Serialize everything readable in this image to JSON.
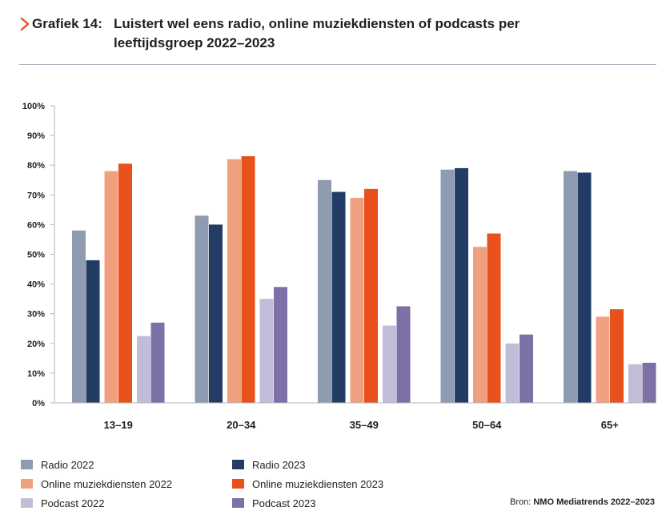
{
  "header": {
    "prefix": "Grafiek 14:",
    "title": "Luistert wel eens radio, online muziekdiensten of podcasts per leeftijdsgroep 2022–2023",
    "accent_color": "#e8501c",
    "icon": "chevron-right-icon"
  },
  "source": {
    "label": "Bron:",
    "name": "NMO Mediatrends 2022–2023"
  },
  "chart_data": {
    "type": "bar",
    "title": "Luistert wel eens radio, online muziekdiensten of podcasts per leeftijdsgroep 2022–2023",
    "xlabel": "",
    "ylabel": "",
    "ylim": [
      0,
      100
    ],
    "yticks": [
      "0%",
      "10%",
      "20%",
      "30%",
      "40%",
      "50%",
      "60%",
      "70%",
      "80%",
      "90%",
      "100%"
    ],
    "grid": false,
    "legend_position": "bottom",
    "categories": [
      "13–19",
      "20–34",
      "35–49",
      "50–64",
      "65+"
    ],
    "series": [
      {
        "name": "Radio 2022",
        "color": "#8e9bb0",
        "values": [
          58,
          63,
          75,
          78.5,
          78
        ]
      },
      {
        "name": "Radio 2023",
        "color": "#233c66",
        "values": [
          48,
          60,
          71,
          79,
          77.5
        ]
      },
      {
        "name": "Online muziekdiensten 2022",
        "color": "#f0a07e",
        "values": [
          78,
          82,
          69,
          52.5,
          29
        ]
      },
      {
        "name": "Online muziekdiensten 2023",
        "color": "#e8501c",
        "values": [
          80.5,
          83,
          72,
          57,
          31.5
        ]
      },
      {
        "name": "Podcast 2022",
        "color": "#c1bdd8",
        "values": [
          22.5,
          35,
          26,
          20,
          13
        ]
      },
      {
        "name": "Podcast 2023",
        "color": "#7d70a6",
        "values": [
          27,
          39,
          32.5,
          23,
          13.5
        ]
      }
    ]
  }
}
